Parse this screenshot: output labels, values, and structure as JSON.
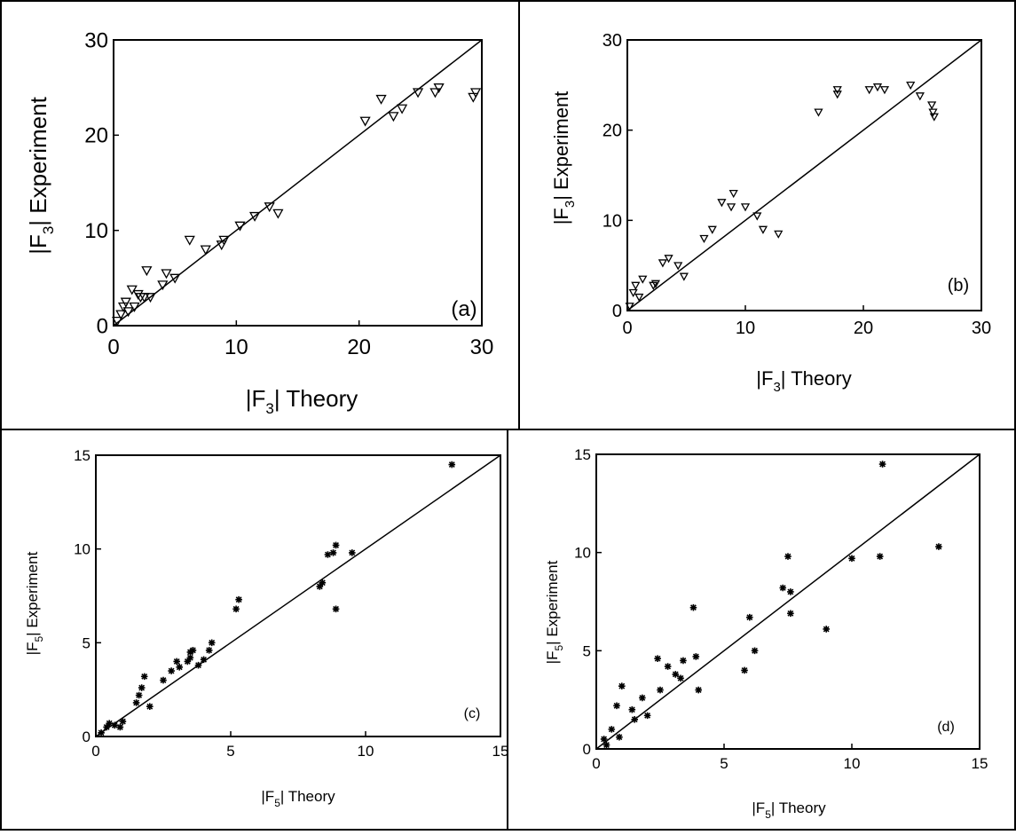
{
  "chart_data": [
    {
      "type": "scatter",
      "panel_label": "(a)",
      "xlabel": "|F3| Theory",
      "ylabel": "|F3| Experiment",
      "subscript": "3",
      "xlim": [
        0,
        30
      ],
      "ylim": [
        0,
        30
      ],
      "xticks": [
        0,
        10,
        20,
        30
      ],
      "yticks": [
        0,
        10,
        20,
        30
      ],
      "marker": "triangle-down",
      "reference_line": "y = x",
      "series": [
        {
          "x": [
            0.3,
            0.6,
            0.8,
            1.0,
            1.2,
            1.5,
            1.7,
            2.0,
            2.2,
            2.5,
            2.7,
            3.0,
            4.0,
            4.3,
            5.0,
            6.2,
            7.5,
            8.8,
            9.0,
            10.3,
            11.5,
            12.7,
            13.4,
            20.5,
            21.8,
            22.8,
            23.5,
            24.8,
            26.2,
            26.5,
            29.3,
            29.5
          ],
          "y": [
            0.5,
            1.2,
            2.0,
            2.5,
            1.5,
            3.8,
            2.0,
            3.3,
            3.0,
            3.0,
            5.8,
            3.0,
            4.3,
            5.5,
            5.0,
            9.0,
            8.0,
            8.5,
            9.0,
            10.5,
            11.5,
            12.5,
            11.8,
            21.5,
            23.8,
            22.0,
            22.8,
            24.5,
            24.5,
            25.0,
            24.0,
            24.5
          ]
        }
      ]
    },
    {
      "type": "scatter",
      "panel_label": "(b)",
      "xlabel": "|F3| Theory",
      "ylabel": "|F3| Experiment",
      "subscript": "3",
      "xlim": [
        0,
        30
      ],
      "ylim": [
        0,
        30
      ],
      "xticks": [
        0,
        10,
        20,
        30
      ],
      "yticks": [
        0,
        10,
        20,
        30
      ],
      "marker": "triangle-down",
      "reference_line": "y = x",
      "series": [
        {
          "x": [
            0.2,
            0.5,
            0.7,
            1.0,
            1.3,
            2.2,
            2.4,
            3.0,
            3.5,
            4.3,
            4.8,
            6.5,
            7.2,
            8.0,
            8.8,
            9.0,
            10.0,
            11.0,
            11.5,
            12.8,
            16.2,
            17.8,
            17.8,
            20.5,
            21.2,
            21.8,
            24.0,
            24.8,
            25.8,
            26.0,
            25.9
          ],
          "y": [
            0.5,
            2.0,
            2.8,
            1.5,
            3.5,
            2.8,
            3.0,
            5.3,
            5.8,
            5.0,
            3.8,
            8.0,
            9.0,
            12.0,
            11.5,
            13.0,
            11.5,
            10.5,
            9.0,
            8.5,
            22.0,
            24.0,
            24.5,
            24.5,
            24.8,
            24.5,
            25.0,
            23.8,
            22.8,
            21.5,
            22.0
          ]
        }
      ]
    },
    {
      "type": "scatter",
      "panel_label": "(c)",
      "xlabel": "|F5| Theory",
      "ylabel": "|F5| Experiment",
      "subscript": "5",
      "xlim": [
        0,
        15
      ],
      "ylim": [
        0,
        15
      ],
      "xticks": [
        0,
        5,
        10,
        15
      ],
      "yticks": [
        0,
        5,
        10,
        15
      ],
      "marker": "asterisk",
      "reference_line": "y = x",
      "series": [
        {
          "x": [
            0.2,
            0.4,
            0.5,
            0.7,
            0.9,
            1.0,
            1.5,
            1.6,
            1.7,
            1.8,
            2.0,
            2.5,
            2.8,
            3.0,
            3.1,
            3.4,
            3.5,
            3.5,
            3.6,
            3.8,
            4.0,
            4.2,
            4.3,
            5.2,
            5.3,
            8.3,
            8.4,
            8.6,
            8.8,
            8.9,
            8.9,
            9.5,
            13.2
          ],
          "y": [
            0.2,
            0.5,
            0.7,
            0.6,
            0.5,
            0.8,
            1.8,
            2.2,
            2.6,
            3.2,
            1.6,
            3.0,
            3.5,
            4.0,
            3.7,
            4.0,
            4.5,
            4.2,
            4.6,
            3.8,
            4.1,
            4.6,
            5.0,
            6.8,
            7.3,
            8.0,
            8.2,
            9.7,
            9.8,
            10.2,
            6.8,
            9.8,
            14.5
          ]
        }
      ]
    },
    {
      "type": "scatter",
      "panel_label": "(d)",
      "xlabel": "|F5| Theory",
      "ylabel": "|F5| Experiment",
      "subscript": "5",
      "xlim": [
        0,
        15
      ],
      "ylim": [
        0,
        15
      ],
      "xticks": [
        0,
        5,
        10,
        15
      ],
      "yticks": [
        0,
        5,
        10,
        15
      ],
      "marker": "asterisk",
      "reference_line": "y = x",
      "series": [
        {
          "x": [
            0.3,
            0.4,
            0.6,
            0.8,
            0.9,
            1.0,
            1.4,
            1.5,
            1.8,
            2.0,
            2.4,
            2.5,
            2.8,
            3.1,
            3.3,
            3.4,
            3.8,
            3.9,
            4.0,
            5.8,
            6.0,
            6.2,
            7.3,
            7.5,
            7.6,
            7.6,
            9.0,
            10.0,
            11.1,
            11.2,
            13.4
          ],
          "y": [
            0.5,
            0.2,
            1.0,
            2.2,
            0.6,
            3.2,
            2.0,
            1.5,
            2.6,
            1.7,
            4.6,
            3.0,
            4.2,
            3.8,
            3.6,
            4.5,
            7.2,
            4.7,
            3.0,
            4.0,
            6.7,
            5.0,
            8.2,
            9.8,
            8.0,
            6.9,
            6.1,
            9.7,
            9.8,
            14.5,
            10.3
          ]
        }
      ]
    }
  ]
}
